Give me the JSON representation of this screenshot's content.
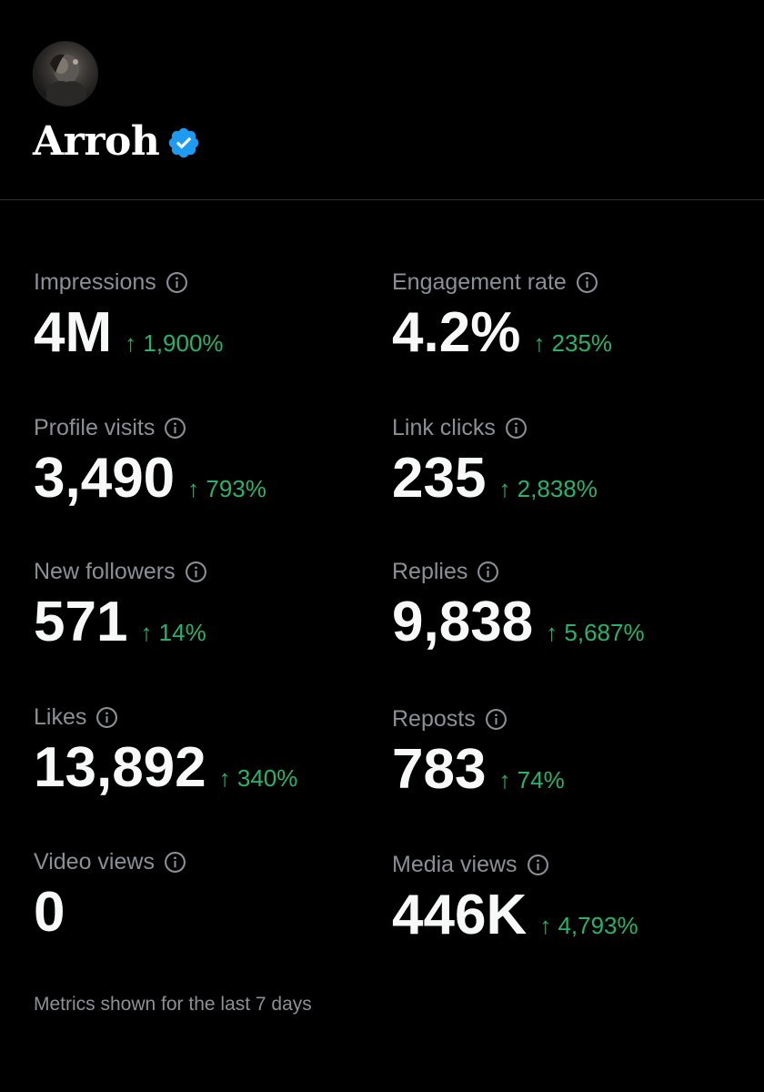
{
  "profile": {
    "name": "Arroh",
    "verified": true,
    "verified_color": "#1d9bf0"
  },
  "metrics": [
    {
      "label": "Impressions",
      "value": "4M",
      "change": "↑ 1,900%"
    },
    {
      "label": "Engagement rate",
      "value": "4.2%",
      "change": "↑ 235%"
    },
    {
      "label": "Profile visits",
      "value": "3,490",
      "change": "↑ 793%"
    },
    {
      "label": "Link clicks",
      "value": "235",
      "change": "↑ 2,838%"
    },
    {
      "label": "New followers",
      "value": "571",
      "change": "↑ 14%"
    },
    {
      "label": "Replies",
      "value": "9,838",
      "change": "↑ 5,687%"
    },
    {
      "label": "Likes",
      "value": "13,892",
      "change": "↑ 340%"
    },
    {
      "label": "Reposts",
      "value": "783",
      "change": "↑ 74%"
    },
    {
      "label": "Video views",
      "value": "0",
      "change": ""
    },
    {
      "label": "Media views",
      "value": "446K",
      "change": "↑ 4,793%"
    }
  ],
  "footer": {
    "note": "Metrics shown for the last 7 days"
  },
  "colors": {
    "background": "#000000",
    "positive_change": "#27b36b",
    "label": "#8b9096",
    "value": "#f7f9f9"
  },
  "icons": {
    "info": "info-circle-icon",
    "verified": "verified-badge-icon"
  }
}
